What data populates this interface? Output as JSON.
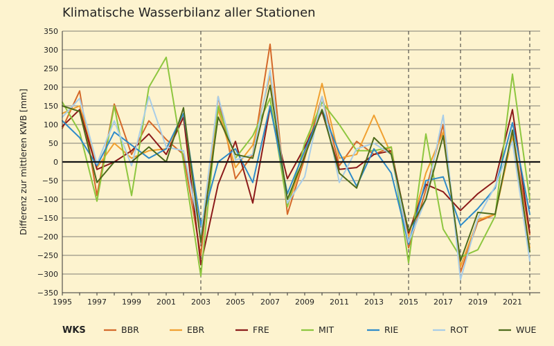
{
  "chart_data": {
    "type": "line",
    "title": "Klimatische Wasserbilanz aller Stationen",
    "xlabel": "",
    "ylabel": "Differenz zur mittleren KWB [mm]",
    "xlim": [
      1995,
      2022.6
    ],
    "ylim": [
      -350,
      350
    ],
    "yticks": [
      350,
      300,
      250,
      200,
      150,
      100,
      50,
      0,
      -50,
      -100,
      -150,
      -200,
      -250,
      -300,
      -350
    ],
    "xticks": [
      1995,
      1997,
      1999,
      2001,
      2003,
      2005,
      2007,
      2009,
      2011,
      2013,
      2015,
      2017,
      2019,
      2021
    ],
    "dashed_vlines": [
      2003,
      2015,
      2018,
      2022
    ],
    "grid": true,
    "legend_title": "WKS",
    "legend_position": "bottom",
    "x": [
      1995,
      1996,
      1997,
      1998,
      1999,
      2000,
      2001,
      2002,
      2003,
      2004,
      2005,
      2006,
      2007,
      2008,
      2009,
      2010,
      2011,
      2012,
      2013,
      2014,
      2015,
      2016,
      2017,
      2018,
      2019,
      2020,
      2021,
      2022
    ],
    "series": [
      {
        "name": "BBR",
        "color": "#d4692a",
        "values": [
          90,
          190,
          -90,
          155,
          20,
          110,
          60,
          20,
          -250,
          175,
          -45,
          20,
          315,
          -140,
          10,
          175,
          -10,
          55,
          20,
          40,
          -230,
          -75,
          100,
          -295,
          -160,
          -140,
          80,
          -195
        ]
      },
      {
        "name": "EBR",
        "color": "#f0a030",
        "values": [
          130,
          150,
          -15,
          50,
          10,
          30,
          35,
          120,
          -200,
          140,
          -15,
          45,
          230,
          -120,
          20,
          210,
          10,
          20,
          125,
          20,
          -200,
          -30,
          80,
          -280,
          -155,
          -140,
          70,
          -230
        ]
      },
      {
        "name": "FRE",
        "color": "#8b1a1a",
        "values": [
          95,
          140,
          -20,
          0,
          30,
          75,
          20,
          120,
          -275,
          -60,
          55,
          -110,
          145,
          -45,
          40,
          135,
          -20,
          -15,
          20,
          30,
          -190,
          -60,
          -80,
          -130,
          -85,
          -50,
          140,
          -190
        ]
      },
      {
        "name": "MIT",
        "color": "#8dc63f",
        "values": [
          160,
          80,
          -105,
          150,
          -90,
          200,
          280,
          0,
          -305,
          150,
          10,
          70,
          170,
          -120,
          50,
          160,
          100,
          30,
          30,
          40,
          -270,
          75,
          -180,
          -255,
          -235,
          -145,
          235,
          -100
        ]
      },
      {
        "name": "RIE",
        "color": "#2e8bc9",
        "values": [
          110,
          65,
          -10,
          80,
          45,
          10,
          35,
          130,
          -170,
          0,
          35,
          -55,
          150,
          -85,
          30,
          140,
          25,
          -65,
          35,
          -30,
          -220,
          -50,
          -40,
          -170,
          -125,
          -70,
          105,
          -140
        ]
      },
      {
        "name": "ROT",
        "color": "#a8cde8",
        "values": [
          120,
          170,
          -5,
          110,
          -10,
          175,
          40,
          30,
          -195,
          175,
          5,
          20,
          245,
          -110,
          -40,
          175,
          -55,
          35,
          50,
          20,
          -215,
          -100,
          125,
          -315,
          -150,
          -65,
          55,
          -265
        ]
      },
      {
        "name": "WUE",
        "color": "#4e6b1c",
        "values": [
          150,
          135,
          -55,
          0,
          0,
          40,
          0,
          145,
          -215,
          120,
          20,
          10,
          205,
          -100,
          15,
          140,
          -30,
          -70,
          65,
          20,
          -185,
          -100,
          70,
          -265,
          -135,
          -140,
          85,
          -240
        ]
      }
    ]
  }
}
